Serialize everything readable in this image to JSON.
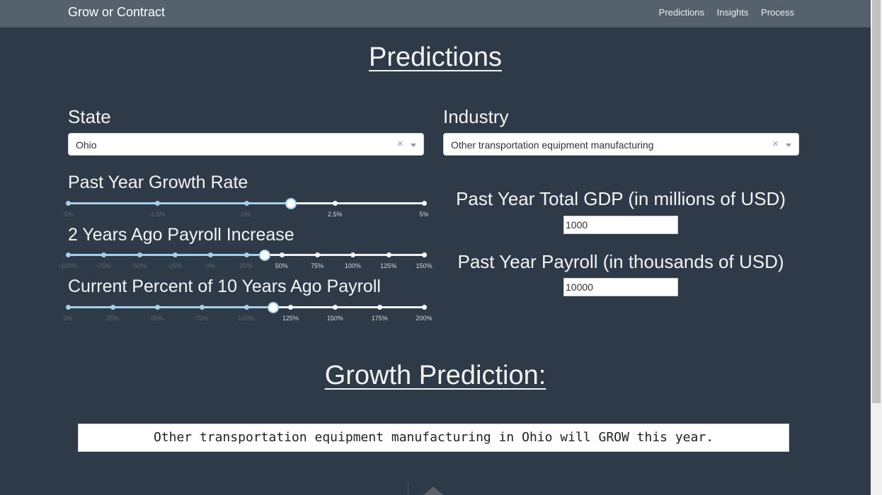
{
  "navbar": {
    "brand": "Grow or Contract",
    "links": [
      "Predictions",
      "Insights",
      "Process"
    ]
  },
  "page_title": "Predictions",
  "state": {
    "label": "State",
    "value": "Ohio",
    "clear_glyph": "×"
  },
  "industry": {
    "label": "Industry",
    "value": "Other transportation equipment manufacturing",
    "clear_glyph": "×"
  },
  "sliders": [
    {
      "label": "Past Year Growth Rate",
      "ticks": [
        "-5%",
        "-2.5%",
        "0%",
        "2.5%",
        "5%"
      ],
      "value_index": 2.5
    },
    {
      "label": "2 Years Ago Payroll Increase",
      "ticks": [
        "-100%",
        "-75%",
        "-50%",
        "-25%",
        "0%",
        "25%",
        "50%",
        "75%",
        "100%",
        "125%",
        "150%"
      ],
      "value_index": 5.5
    },
    {
      "label": "Current Percent of 10 Years Ago Payroll",
      "ticks": [
        "0%",
        "25%",
        "50%",
        "75%",
        "100%",
        "125%",
        "150%",
        "175%",
        "200%"
      ],
      "value_index": 4.6
    }
  ],
  "gdp": {
    "label": "Past Year Total GDP (in millions of USD)",
    "value": "1000"
  },
  "payroll": {
    "label": "Past Year Payroll (in thousands of USD)",
    "value": "10000"
  },
  "prediction_title": "Growth Prediction:",
  "prediction_text": "Other transportation equipment manufacturing in Ohio will GROW this year.",
  "colors": {
    "background": "#2e3a48",
    "navbar": "#55616c",
    "slider_accent": "#a9d0ea"
  }
}
